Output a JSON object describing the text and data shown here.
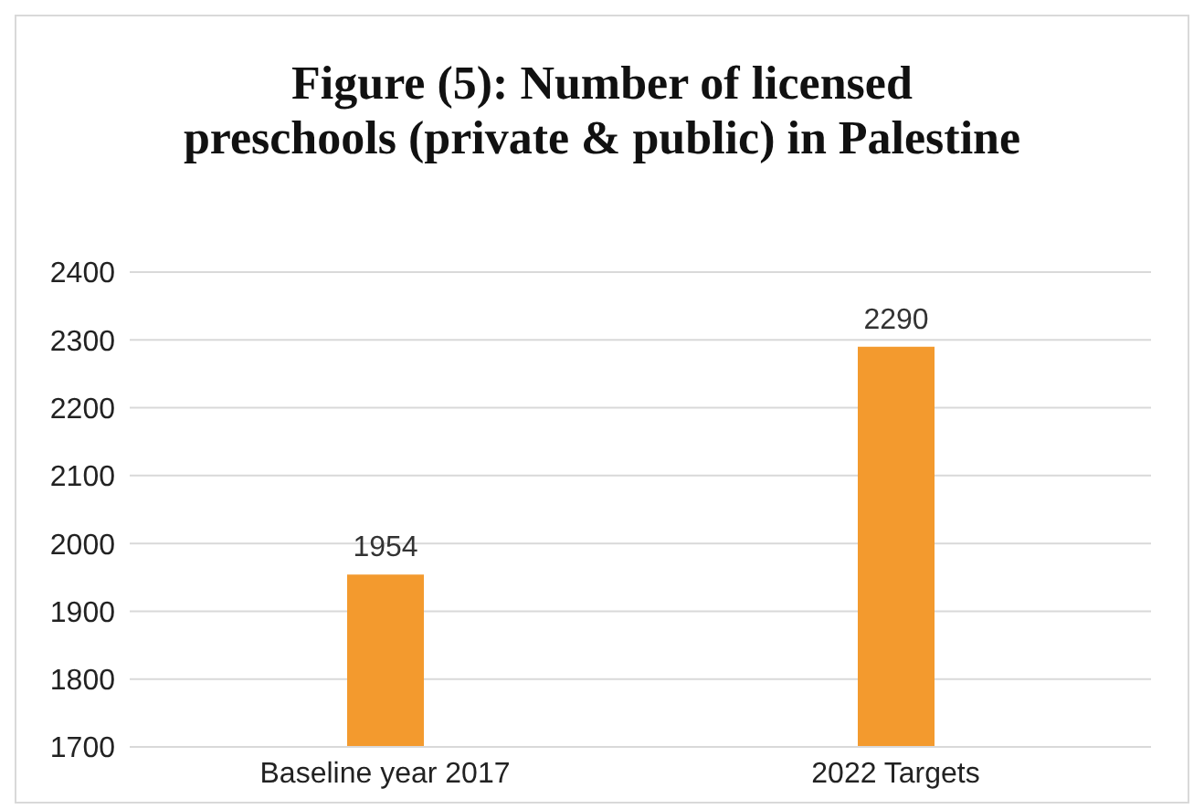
{
  "chart_data": {
    "type": "bar",
    "title": "Figure (5): Number of licensed preschools (private & public) in Palestine",
    "categories": [
      "Baseline year 2017",
      "2022 Targets"
    ],
    "values": [
      1954,
      2290
    ],
    "color": "#f39a2e",
    "ylim": [
      1700,
      2400
    ],
    "yticks": [
      1700,
      1800,
      1900,
      2000,
      2100,
      2200,
      2300,
      2400
    ],
    "grid": "y",
    "data_labels": true,
    "legend": false
  }
}
